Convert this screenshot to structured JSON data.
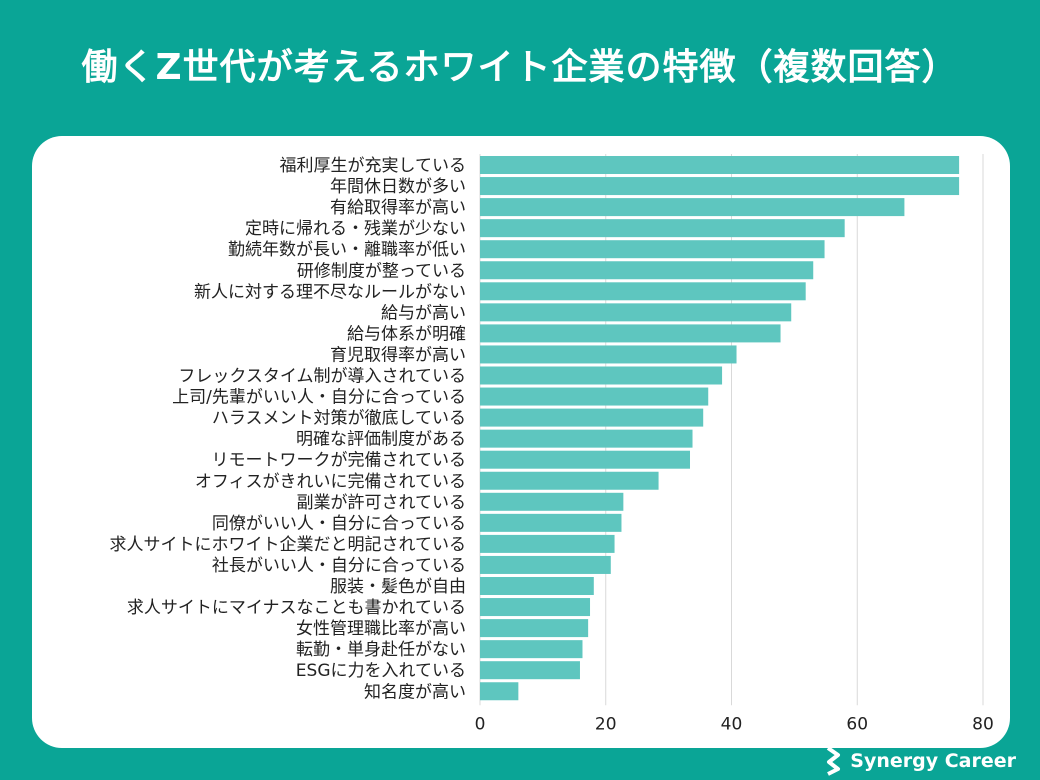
{
  "title": "働くZ世代が考えるホワイト企業の特徴（複数回答）",
  "brand": {
    "name": "Synergy Career"
  },
  "colors": {
    "background": "#0aa596",
    "bar": "#5ec6bf",
    "grid": "#d9d9d9",
    "text": "#222222"
  },
  "chart_data": {
    "type": "bar",
    "orientation": "horizontal",
    "categories": [
      "福利厚生が充実している",
      "年間休日数が多い",
      "有給取得率が高い",
      "定時に帰れる・残業が少ない",
      "勤続年数が長い・離職率が低い",
      "研修制度が整っている",
      "新人に対する理不尽なルールがない",
      "給与が高い",
      "給与体系が明確",
      "育児取得率が高い",
      "フレックスタイム制が導入されている",
      "上司/先輩がいい人・自分に合っている",
      "ハラスメント対策が徹底している",
      "明確な評価制度がある",
      "リモートワークが完備されている",
      "オフィスがきれいに完備されている",
      "副業が許可されている",
      "同僚がいい人・自分に合っている",
      "求人サイトにホワイト企業だと明記されている",
      "社長がいい人・自分に合っている",
      "服装・髪色が自由",
      "求人サイトにマイナスなことも書かれている",
      "女性管理職比率が高い",
      "転勤・単身赴任がない",
      "ESGに力を入れている",
      "知名度が高い"
    ],
    "values": [
      76.2,
      76.2,
      67.5,
      58.0,
      54.8,
      53.0,
      51.8,
      49.5,
      47.8,
      40.8,
      38.5,
      36.3,
      35.5,
      33.8,
      33.4,
      28.4,
      22.8,
      22.5,
      21.4,
      20.8,
      18.1,
      17.5,
      17.2,
      16.3,
      15.9,
      6.1
    ],
    "xlim": [
      0,
      80
    ],
    "xticks": [
      "0",
      "20",
      "40",
      "60",
      "80"
    ],
    "grid": true,
    "xlabel": "",
    "ylabel": ""
  }
}
